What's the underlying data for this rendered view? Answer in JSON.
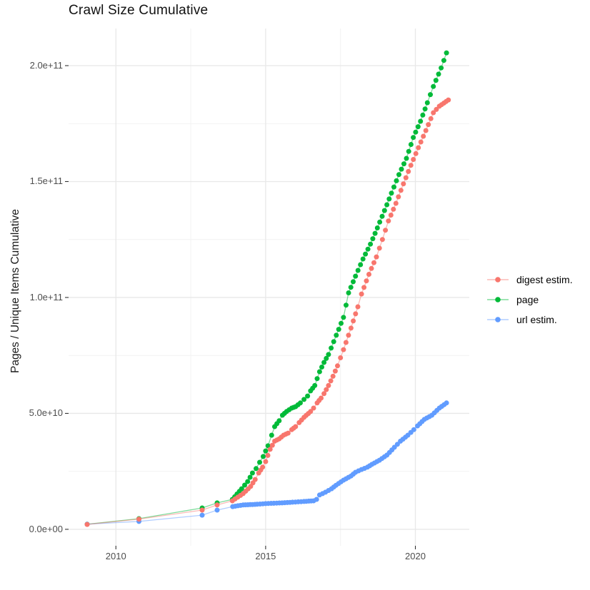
{
  "title": "Crawl Size Cumulative",
  "y_axis": {
    "label": "Pages / Unique Items Cumulative",
    "tick_labels": [
      "0.0e+00",
      "5.0e+10",
      "1.0e+11",
      "1.5e+11",
      "2.0e+11"
    ],
    "tick_values_e9": [
      0,
      50,
      100,
      150,
      200
    ]
  },
  "x_axis": {
    "tick_labels": [
      "2010",
      "2015",
      "2020"
    ],
    "tick_values": [
      2010,
      2015,
      2020
    ]
  },
  "legend": {
    "items": [
      {
        "label": "digest estim.",
        "color": "#F8766D"
      },
      {
        "label": "page",
        "color": "#00BA38"
      },
      {
        "label": "url estim.",
        "color": "#619CFF"
      }
    ]
  },
  "colors": {
    "grid_major": "#e8e8e8",
    "grid_minor": "#f2f2f2",
    "axis_tick": "#333333",
    "background": "#ffffff"
  },
  "chart_data": {
    "type": "scatter",
    "title": "Crawl Size Cumulative",
    "xlabel": "",
    "ylabel": "Pages / Unique Items Cumulative",
    "points_unit": "billions (1e9) of pages / unique items",
    "x_range": [
      2008.42,
      2021.8
    ],
    "y_range_e9": [
      -7.1,
      216
    ],
    "grid": true,
    "legend_position": "right",
    "axes": {
      "major_x": [
        2010,
        2015,
        2020
      ],
      "minor_x": [
        2012.5,
        2017.5
      ],
      "major_y_e9": [
        0,
        50,
        100,
        150,
        200
      ],
      "minor_y_e9": [
        25,
        75,
        125,
        175
      ]
    },
    "dense_from_year": 2013.85,
    "sample_step_years": 0.085,
    "draw_order": [
      "page",
      "url estim.",
      "digest estim."
    ],
    "series": [
      {
        "name": "digest estim.",
        "color": "#F8766D",
        "points_year_value_e9": [
          [
            2009.04,
            2.1
          ],
          [
            2010.77,
            4.4
          ],
          [
            2012.88,
            8.3
          ],
          [
            2013.38,
            10.5
          ],
          [
            2013.89,
            12.3
          ],
          [
            2014.25,
            15.4
          ],
          [
            2014.5,
            18.5
          ],
          [
            2014.65,
            21.5
          ],
          [
            2014.77,
            24.3
          ],
          [
            2014.9,
            26.8
          ],
          [
            2015.0,
            29.2
          ],
          [
            2015.15,
            34.5
          ],
          [
            2015.3,
            38.0
          ],
          [
            2015.45,
            39.0
          ],
          [
            2015.6,
            40.6
          ],
          [
            2015.75,
            41.5
          ],
          [
            2015.87,
            43.0
          ],
          [
            2016.0,
            44.3
          ],
          [
            2016.12,
            46.0
          ],
          [
            2016.28,
            48.3
          ],
          [
            2016.5,
            50.8
          ],
          [
            2016.6,
            52.3
          ],
          [
            2016.72,
            54.5
          ],
          [
            2016.85,
            56.6
          ],
          [
            2016.95,
            58.5
          ],
          [
            2017.1,
            62.0
          ],
          [
            2017.25,
            66.0
          ],
          [
            2017.4,
            70.5
          ],
          [
            2017.6,
            77.5
          ],
          [
            2017.85,
            86.8
          ],
          [
            2018.08,
            96.0
          ],
          [
            2018.2,
            101.5
          ],
          [
            2018.45,
            110.0
          ],
          [
            2018.7,
            117.5
          ],
          [
            2018.9,
            125.0
          ],
          [
            2019.1,
            133.0
          ],
          [
            2019.35,
            140.6
          ],
          [
            2019.6,
            149.0
          ],
          [
            2019.85,
            157.0
          ],
          [
            2020.1,
            164.6
          ],
          [
            2020.35,
            172.0
          ],
          [
            2020.6,
            179.7
          ],
          [
            2020.8,
            182.5
          ],
          [
            2021.1,
            185.2
          ]
        ]
      },
      {
        "name": "page",
        "color": "#00BA38",
        "points_year_value_e9": [
          [
            2009.04,
            2.2
          ],
          [
            2010.77,
            4.6
          ],
          [
            2012.88,
            9.2
          ],
          [
            2013.38,
            11.4
          ],
          [
            2013.89,
            12.9
          ],
          [
            2014.2,
            17.5
          ],
          [
            2014.4,
            20.6
          ],
          [
            2014.56,
            24.3
          ],
          [
            2014.68,
            26.2
          ],
          [
            2014.8,
            28.9
          ],
          [
            2014.92,
            31.4
          ],
          [
            2015.0,
            33.8
          ],
          [
            2015.08,
            36.0
          ],
          [
            2015.2,
            40.6
          ],
          [
            2015.3,
            44.3
          ],
          [
            2015.45,
            46.8
          ],
          [
            2015.56,
            49.2
          ],
          [
            2015.7,
            50.8
          ],
          [
            2015.87,
            52.3
          ],
          [
            2016.0,
            52.9
          ],
          [
            2016.16,
            54.5
          ],
          [
            2016.28,
            56.0
          ],
          [
            2016.4,
            57.5
          ],
          [
            2016.5,
            59.7
          ],
          [
            2016.64,
            62.0
          ],
          [
            2016.8,
            68.0
          ],
          [
            2016.95,
            72.0
          ],
          [
            2017.1,
            75.4
          ],
          [
            2017.36,
            83.7
          ],
          [
            2017.6,
            91.4
          ],
          [
            2017.77,
            102.0
          ],
          [
            2018.0,
            109.2
          ],
          [
            2018.25,
            116.6
          ],
          [
            2018.5,
            123.0
          ],
          [
            2018.73,
            130.0
          ],
          [
            2018.97,
            137.5
          ],
          [
            2019.2,
            145.0
          ],
          [
            2019.45,
            153.0
          ],
          [
            2019.7,
            160.0
          ],
          [
            2019.93,
            169.0
          ],
          [
            2020.17,
            176.0
          ],
          [
            2020.4,
            184.0
          ],
          [
            2020.6,
            191.0
          ],
          [
            2020.86,
            199.0
          ],
          [
            2021.04,
            205.5
          ]
        ]
      },
      {
        "name": "url estim.",
        "color": "#619CFF",
        "points_year_value_e9": [
          [
            2009.04,
            2.2
          ],
          [
            2010.77,
            3.4
          ],
          [
            2012.88,
            6.1
          ],
          [
            2013.38,
            8.3
          ],
          [
            2013.9,
            9.8
          ],
          [
            2014.25,
            10.5
          ],
          [
            2014.72,
            10.8
          ],
          [
            2015.0,
            11.1
          ],
          [
            2015.55,
            11.4
          ],
          [
            2015.9,
            11.7
          ],
          [
            2016.28,
            12.0
          ],
          [
            2016.6,
            12.3
          ],
          [
            2016.7,
            12.9
          ],
          [
            2016.8,
            14.8
          ],
          [
            2017.0,
            16.0
          ],
          [
            2017.2,
            17.5
          ],
          [
            2017.35,
            19.0
          ],
          [
            2017.6,
            21.2
          ],
          [
            2017.85,
            23.0
          ],
          [
            2018.0,
            24.6
          ],
          [
            2018.2,
            25.8
          ],
          [
            2018.4,
            26.8
          ],
          [
            2018.55,
            28.0
          ],
          [
            2018.8,
            29.8
          ],
          [
            2019.05,
            32.0
          ],
          [
            2019.3,
            35.4
          ],
          [
            2019.5,
            38.0
          ],
          [
            2019.75,
            40.6
          ],
          [
            2019.95,
            43.0
          ],
          [
            2020.07,
            44.6
          ],
          [
            2020.3,
            47.4
          ],
          [
            2020.55,
            49.2
          ],
          [
            2020.8,
            52.3
          ],
          [
            2021.04,
            54.5
          ]
        ]
      }
    ]
  }
}
